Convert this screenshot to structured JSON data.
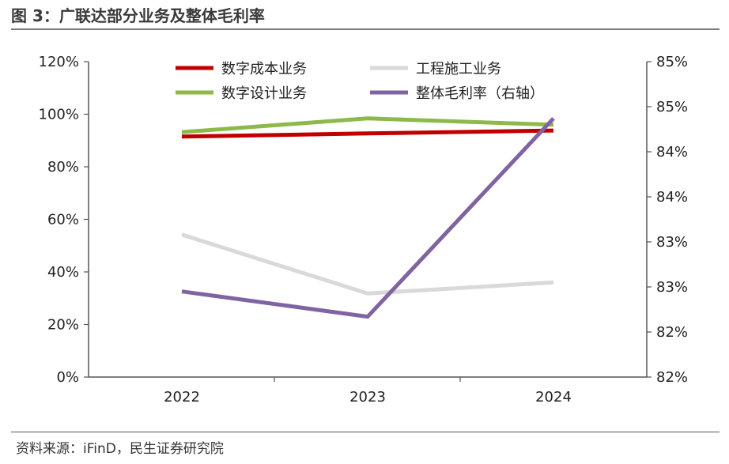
{
  "header": {
    "title": "图 3：广联达部分业务及整体毛利率"
  },
  "footer": {
    "source": "资料来源：iFinD，民生证券研究院"
  },
  "chart_data": {
    "type": "line",
    "categories": [
      "2022",
      "2023",
      "2024"
    ],
    "left_axis": {
      "min": 0,
      "max": 120,
      "step": 20,
      "tick_labels": [
        "0%",
        "20%",
        "40%",
        "60%",
        "80%",
        "100%",
        "120%"
      ]
    },
    "right_axis": {
      "min": 82.0,
      "max": 85.5,
      "step": 0.5,
      "tick_labels": [
        "82%",
        "82%",
        "83%",
        "83%",
        "84%",
        "84%",
        "85%",
        "85%"
      ]
    },
    "series": [
      {
        "name": "数字成本业务",
        "axis": "left",
        "color": "#c00000",
        "values": [
          91.5,
          92.7,
          93.8
        ]
      },
      {
        "name": "工程施工业务",
        "axis": "left",
        "color": "#d9d9d9",
        "values": [
          54.2,
          31.8,
          36.0
        ]
      },
      {
        "name": "数字设计业务",
        "axis": "left",
        "color": "#8db94a",
        "values": [
          93.2,
          98.4,
          96.0
        ]
      },
      {
        "name": "整体毛利率（右轴）",
        "axis": "right",
        "color": "#8064a2",
        "values": [
          82.95,
          82.67,
          84.87
        ]
      }
    ],
    "legend_position": "top",
    "grid": false
  }
}
